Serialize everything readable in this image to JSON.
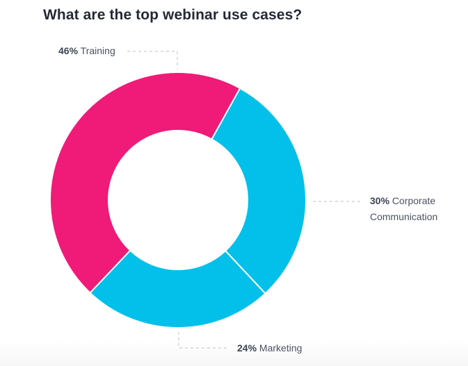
{
  "title": "What are the top webinar use cases?",
  "chart_data": {
    "type": "pie",
    "variant": "donut",
    "title": "What are the top webinar use cases?",
    "categories": [
      "Training",
      "Corporate Communication",
      "Marketing"
    ],
    "values": [
      46,
      30,
      24
    ],
    "unit": "%",
    "colors": [
      "#f01a78",
      "#02c0e9",
      "#02c0e9"
    ],
    "legend": "none (leader-line labels)"
  },
  "labels": [
    {
      "pct": "46%",
      "name": "Training"
    },
    {
      "pct": "30%",
      "name": "Corporate",
      "name2": "Communication"
    },
    {
      "pct": "24%",
      "name": "Marketing"
    }
  ],
  "colors": {
    "training": "#f01a78",
    "corporate": "#02c0e9",
    "marketing": "#02c0e9",
    "leader": "#c8ccd2"
  }
}
